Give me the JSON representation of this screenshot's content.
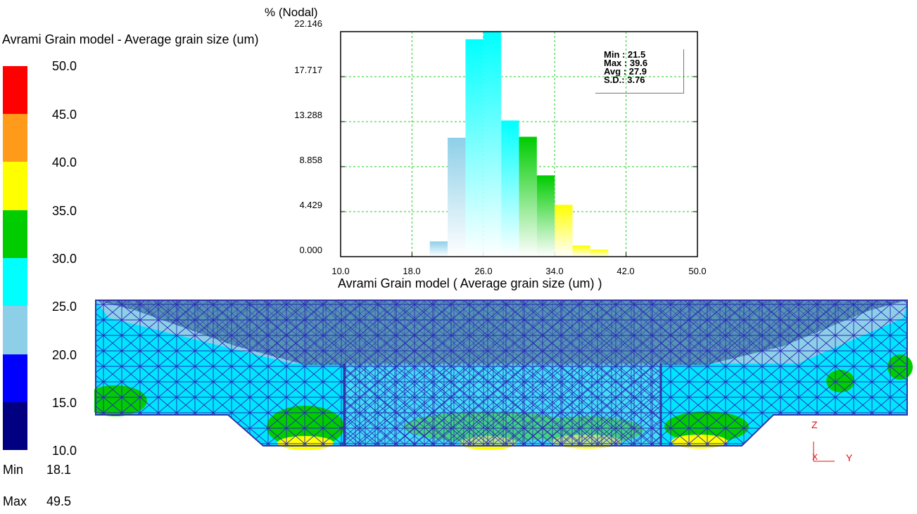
{
  "legend": {
    "title": "Avrami Grain model - Average grain size (um)",
    "scale_labels": [
      "50.0",
      "45.0",
      "40.0",
      "35.0",
      "30.0",
      "25.0",
      "20.0",
      "15.0",
      "10.0"
    ],
    "band_colors": [
      "#ff0000",
      "#ff9a1a",
      "#ffff00",
      "#00cc00",
      "#00ffff",
      "#8ecfe8",
      "#0000ff",
      "#000080"
    ],
    "min_label": "Min",
    "min_value": "18.1",
    "max_label": "Max",
    "max_value": "49.5"
  },
  "chart_data": {
    "type": "bar",
    "ylabel": "% (Nodal)",
    "xlabel": "Avrami Grain model ( Average grain size (um) )",
    "x_ticks": [
      "10.0",
      "18.0",
      "26.0",
      "34.0",
      "42.0",
      "50.0"
    ],
    "y_ticks": [
      "22.146",
      "17.717",
      "13.288",
      "8.858",
      "4.429",
      "0.000"
    ],
    "xlim": [
      10,
      50
    ],
    "ylim": [
      0,
      22.146
    ],
    "grid": true,
    "bins": [
      {
        "start": 20,
        "end": 22,
        "value": 1.5
      },
      {
        "start": 22,
        "end": 24,
        "value": 11.7
      },
      {
        "start": 24,
        "end": 26,
        "value": 21.4
      },
      {
        "start": 26,
        "end": 28,
        "value": 22.146
      },
      {
        "start": 28,
        "end": 30,
        "value": 13.4
      },
      {
        "start": 30,
        "end": 32,
        "value": 11.8
      },
      {
        "start": 32,
        "end": 34,
        "value": 8.0
      },
      {
        "start": 34,
        "end": 36,
        "value": 5.1
      },
      {
        "start": 36,
        "end": 38,
        "value": 1.1
      },
      {
        "start": 38,
        "end": 40,
        "value": 0.7
      }
    ],
    "stats": {
      "min": "Min : 21.5",
      "max": "Max : 39.6",
      "avg": "Avg : 27.9",
      "sd": "S.D.: 3.76"
    }
  },
  "triad": {
    "z": "Z",
    "x": "X",
    "y": "Y"
  }
}
